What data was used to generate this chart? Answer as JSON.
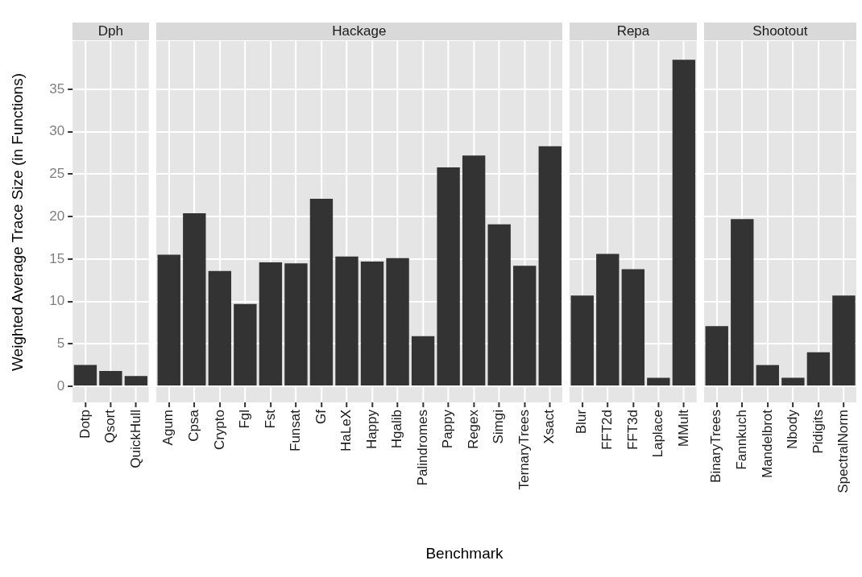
{
  "chart_data": [
    {
      "type": "bar",
      "title": "Dph",
      "ylabel": "Weighted Average Trace Size (in Functions)",
      "categories": [
        "Dotp",
        "Qsort",
        "QuickHull"
      ],
      "values": [
        2.5,
        1.8,
        1.2
      ],
      "color": "#333333",
      "ylim": [
        -1.9,
        40.7
      ],
      "yticks": [
        0,
        5,
        10,
        15,
        20,
        25,
        30,
        35
      ],
      "grid": true,
      "legend": false
    },
    {
      "type": "bar",
      "title": "Hackage",
      "xlabel": "Benchmark",
      "categories": [
        "Agum",
        "Cpsa",
        "Crypto",
        "Fgl",
        "Fst",
        "Funsat",
        "Gf",
        "HaLeX",
        "Happy",
        "Hgalib",
        "Palindromes",
        "Pappy",
        "Regex",
        "Simgi",
        "TernaryTrees",
        "Xsact"
      ],
      "values": [
        15.5,
        20.4,
        13.6,
        9.7,
        14.6,
        14.5,
        22.1,
        15.3,
        14.7,
        15.1,
        5.9,
        25.8,
        27.2,
        19.1,
        14.2,
        28.3
      ],
      "color": "#333333",
      "ylim": [
        -1.9,
        40.7
      ],
      "yticks": [
        0,
        5,
        10,
        15,
        20,
        25,
        30,
        35
      ],
      "grid": true,
      "legend": false,
      "tick_labels": "x"
    },
    {
      "type": "bar",
      "title": "Repa",
      "categories": [
        "Blur",
        "FFT2d",
        "FFT3d",
        "Laplace",
        "MMult"
      ],
      "values": [
        10.7,
        15.6,
        13.8,
        1.0,
        38.5
      ],
      "color": "#333333",
      "ylim": [
        -1.9,
        40.7
      ],
      "yticks": [
        0,
        5,
        10,
        15,
        20,
        25,
        30,
        35
      ],
      "grid": true,
      "legend": false,
      "tick_labels": "x"
    },
    {
      "type": "bar",
      "title": "Shootout",
      "categories": [
        "BinaryTrees",
        "Fannkuch",
        "Mandelbrot",
        "Nbody",
        "Pidigits",
        "SpectralNorm"
      ],
      "values": [
        7.1,
        19.7,
        2.5,
        1.0,
        4.0,
        10.7
      ],
      "color": "#333333",
      "ylim": [
        -1.9,
        40.7
      ],
      "yticks": [
        0,
        5,
        10,
        15,
        20,
        25,
        30,
        35
      ],
      "grid": true,
      "legend": false,
      "tick_labels": "x"
    }
  ]
}
